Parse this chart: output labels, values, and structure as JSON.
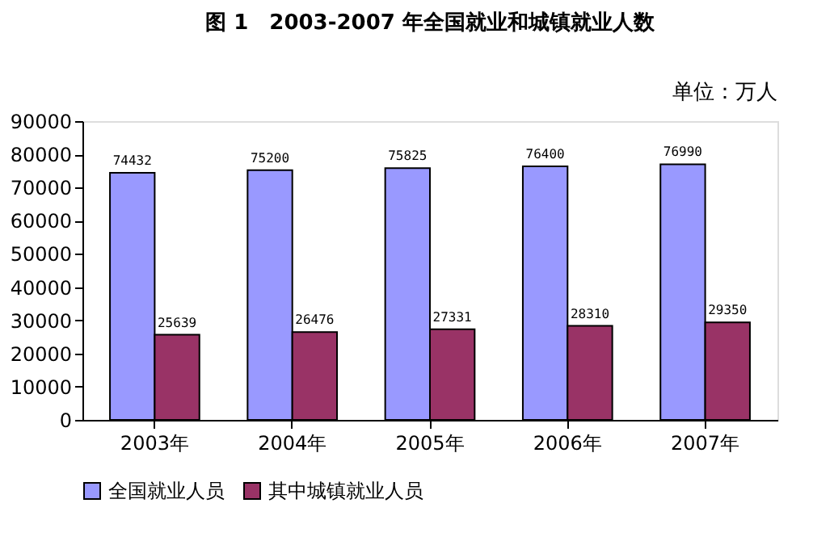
{
  "chart_data": {
    "type": "bar",
    "title": "图 1　2003-2007 年全国就业和城镇就业人数",
    "annotations": [
      "单位：万人"
    ],
    "categories": [
      "2003年",
      "2004年",
      "2005年",
      "2006年",
      "2007年"
    ],
    "series": [
      {
        "name": "全国就业人员",
        "color": "#9999ff",
        "values": [
          74432,
          75200,
          75825,
          76400,
          76990
        ]
      },
      {
        "name": "其中城镇就业人员",
        "color": "#993366",
        "values": [
          25639,
          26476,
          27331,
          28310,
          29350
        ]
      }
    ],
    "ylim": [
      0,
      90000
    ],
    "yticks": [
      0,
      10000,
      20000,
      30000,
      40000,
      50000,
      60000,
      70000,
      80000,
      90000
    ],
    "data_labels": true,
    "grid": false,
    "legend": "bottom"
  }
}
